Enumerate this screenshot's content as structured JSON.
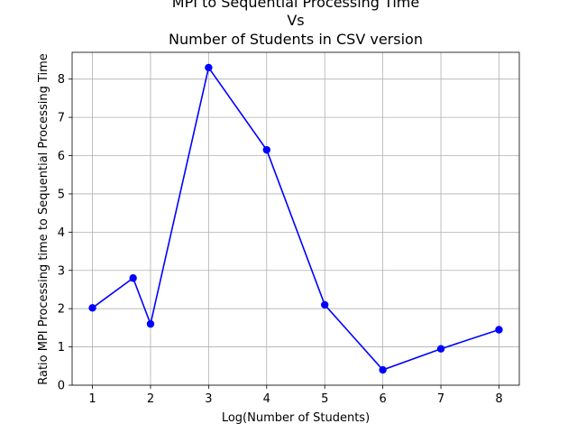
{
  "chart_data": {
    "type": "line",
    "title_lines": [
      "MPI to Sequential Processing Time",
      "Vs",
      "Number of Students in CSV version"
    ],
    "xlabel": "Log(Number of Students)",
    "ylabel": "Ratio MPI Processing time to Sequential Processing Time",
    "xlim": [
      0.65,
      8.35
    ],
    "ylim": [
      0,
      8.7
    ],
    "x_ticks": [
      1,
      2,
      3,
      4,
      5,
      6,
      7,
      8
    ],
    "y_ticks": [
      0,
      1,
      2,
      3,
      4,
      5,
      6,
      7,
      8
    ],
    "grid": true,
    "series": [
      {
        "x": [
          1,
          1.7,
          2,
          3,
          4,
          5,
          6,
          7,
          8
        ],
        "y": [
          2.02,
          2.8,
          1.6,
          8.3,
          6.15,
          2.1,
          0.4,
          0.95,
          1.45
        ],
        "color": "#0000ff",
        "marker": "circle"
      }
    ]
  }
}
